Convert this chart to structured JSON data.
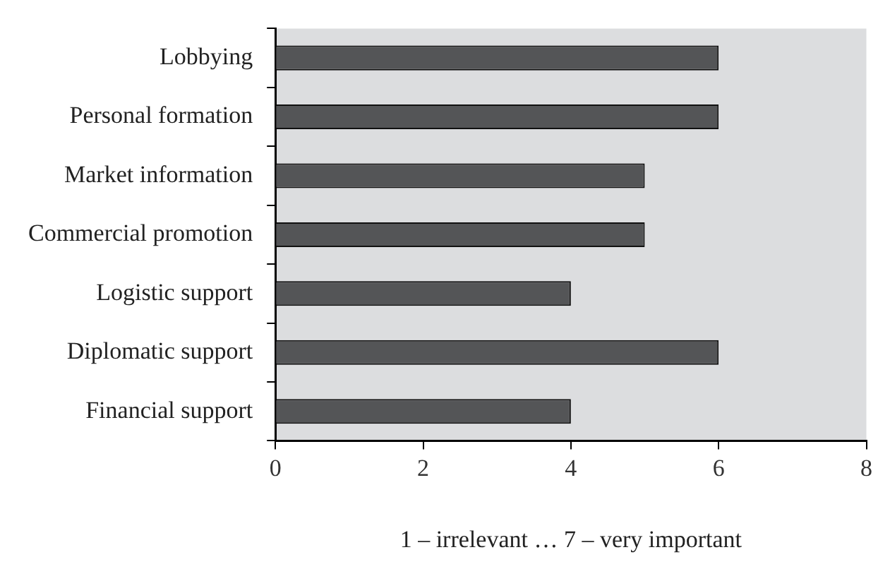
{
  "chart_data": {
    "type": "bar",
    "orientation": "horizontal",
    "categories": [
      "Lobbying",
      "Personal formation",
      "Market information",
      "Commercial promotion",
      "Logistic support",
      "Diplomatic support",
      "Financial support"
    ],
    "values": [
      6,
      6,
      5,
      5,
      4,
      6,
      4
    ],
    "color": "#545557",
    "xlim": [
      0,
      8
    ],
    "xticks": [
      0,
      2,
      4,
      6,
      8
    ],
    "xlabel": "1 – irrelevant … 7 – very important",
    "grid": false,
    "legend": false
  }
}
